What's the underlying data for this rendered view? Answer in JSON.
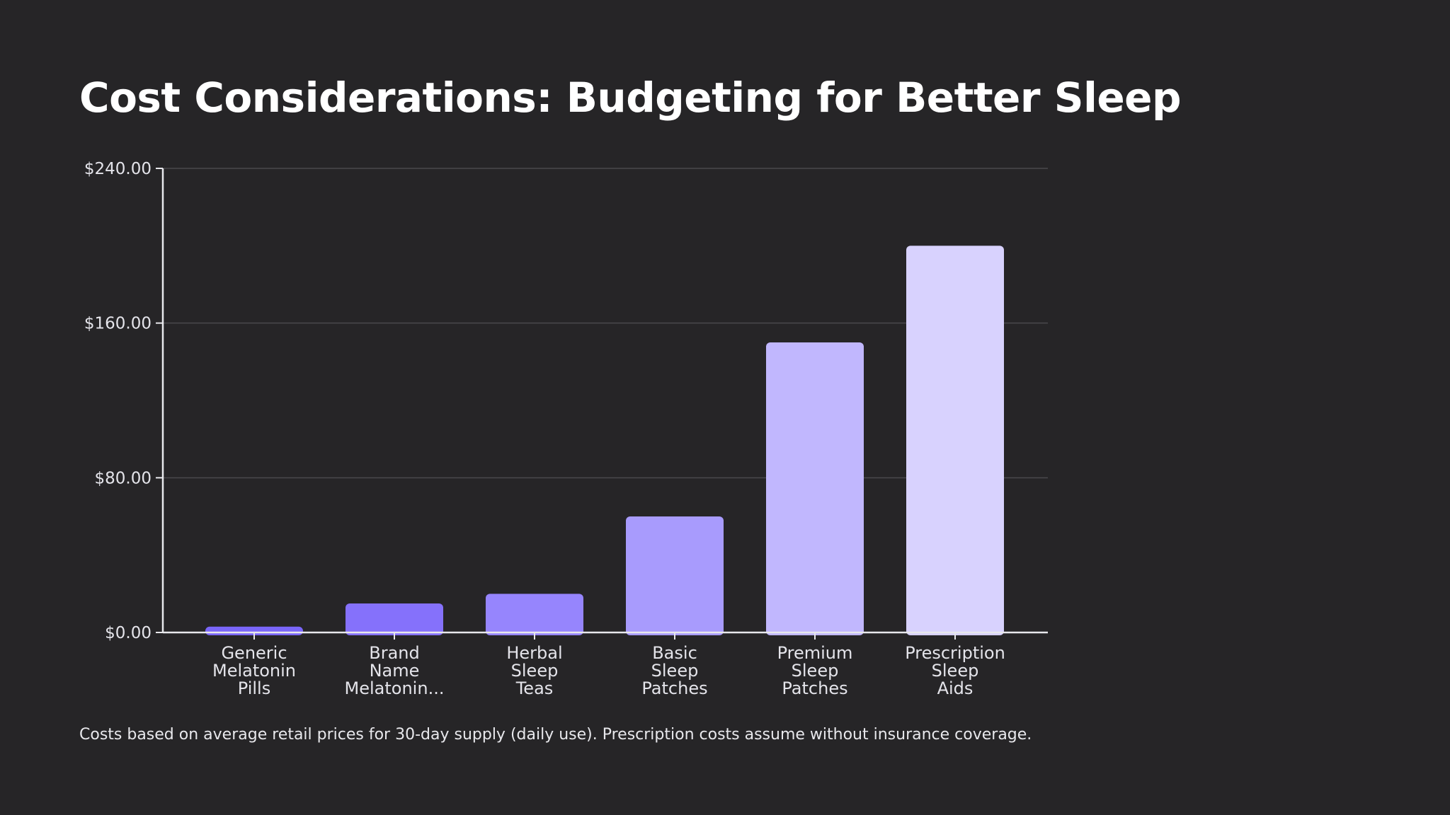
{
  "slide": {
    "title": "Cost Considerations: Budgeting for Better Sleep",
    "footnote": "Costs based on average retail prices for 30-day supply (daily use). Prescription costs assume without insurance coverage."
  },
  "chart_data": {
    "type": "bar",
    "title": "",
    "xlabel": "",
    "ylabel": "",
    "categories": [
      "Generic Melatonin Pills",
      "Brand Name Melatonin...",
      "Herbal Sleep Teas",
      "Basic Sleep Patches",
      "Premium Sleep Patches",
      "Prescription Sleep Aids"
    ],
    "category_lines": [
      [
        "Generic",
        "Melatonin",
        "Pills"
      ],
      [
        "Brand",
        "Name",
        "Melatonin..."
      ],
      [
        "Herbal",
        "Sleep",
        "Teas"
      ],
      [
        "Basic",
        "Sleep",
        "Patches"
      ],
      [
        "Premium",
        "Sleep",
        "Patches"
      ],
      [
        "Prescription",
        "Sleep",
        "Aids"
      ]
    ],
    "values": [
      3,
      15,
      20,
      60,
      150,
      200
    ],
    "ylim": [
      0,
      240
    ],
    "yticks": [
      0,
      80,
      160,
      240
    ],
    "ytick_labels": [
      "$0.00",
      "$80.00",
      "$160.00",
      "$240.00"
    ],
    "grid": true,
    "colors": [
      "#7a66f9",
      "#8571fb",
      "#9685fd",
      "#a89bfd",
      "#c1b7fe",
      "#d8d2fe"
    ],
    "background": "#262527"
  }
}
